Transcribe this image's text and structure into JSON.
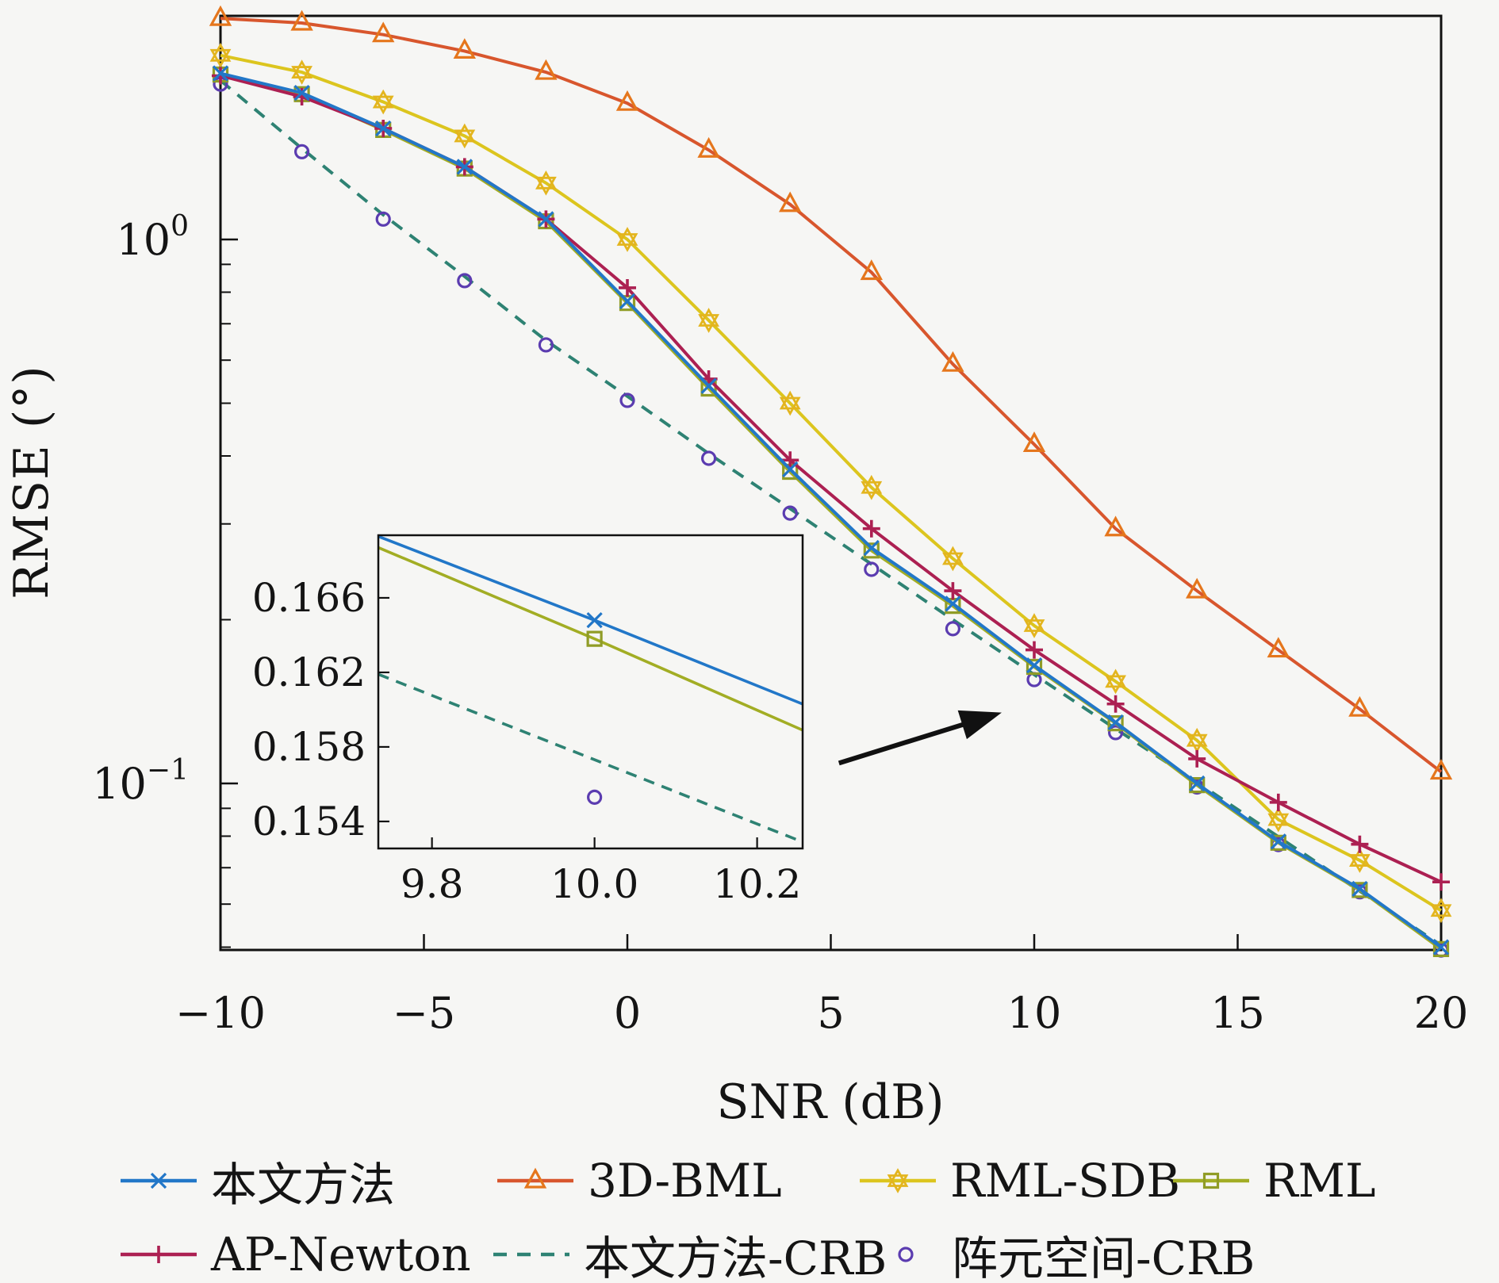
{
  "figure": {
    "background": "#f6f6f4",
    "spine_color": "#111111"
  },
  "chart_data": {
    "type": "line",
    "title": "",
    "xlabel": "SNR (dB)",
    "ylabel": "RMSE (°)",
    "x_scale": "linear",
    "y_scale": "log",
    "xlim": [
      -10,
      20
    ],
    "ylim": [
      0.0494,
      2.576
    ],
    "grid": false,
    "x_axis": {
      "tick_values": [
        -10,
        -5,
        0,
        5,
        10,
        15,
        20
      ],
      "tick_labels": [
        "−10",
        "−5",
        "0",
        "5",
        "10",
        "15",
        "20"
      ]
    },
    "y_axis": {
      "major_ticks": [
        {
          "value": 1,
          "base": "10",
          "exp": "0"
        },
        {
          "value": 0.1,
          "base": "10",
          "exp": "−1"
        }
      ],
      "minor_ticks": [
        0.05,
        0.06,
        0.07,
        0.08,
        0.09,
        0.2,
        0.3,
        0.4,
        0.5,
        0.6,
        0.7,
        0.8,
        0.9,
        2
      ]
    },
    "x": [
      -10,
      -8,
      -6,
      -4,
      -2,
      0,
      2,
      4,
      6,
      8,
      10,
      12,
      14,
      16,
      18,
      20
    ],
    "series": [
      {
        "name": "本文方法",
        "color": "#2277c8",
        "marker": "x",
        "marker_color": "#2277c8",
        "line": true,
        "dash": null,
        "values": [
          2.02,
          1.86,
          1.6,
          1.36,
          1.09,
          0.77,
          0.538,
          0.378,
          0.271,
          0.214,
          0.1648,
          0.1295,
          0.1,
          0.0782,
          0.064,
          0.05
        ]
      },
      {
        "name": "3D-BML",
        "color": "#d8562d",
        "marker": "triangle",
        "marker_color": "#e5761c",
        "line": true,
        "dash": null,
        "values": [
          2.55,
          2.5,
          2.38,
          2.22,
          2.03,
          1.78,
          1.46,
          1.16,
          0.87,
          0.59,
          0.42,
          0.294,
          0.226,
          0.176,
          0.137,
          0.105
        ]
      },
      {
        "name": "RML-SDB",
        "color": "#dcc51e",
        "marker": "hexagram",
        "marker_color": "#e3b51e",
        "line": true,
        "dash": null,
        "values": [
          2.18,
          2.03,
          1.79,
          1.55,
          1.27,
          1.0,
          0.71,
          0.5,
          0.35,
          0.259,
          0.195,
          0.154,
          0.12,
          0.0858,
          0.0722,
          0.0584
        ]
      },
      {
        "name": "RML",
        "color": "#a2ad24",
        "marker": "square",
        "marker_color": "#909c26",
        "line": true,
        "dash": null,
        "values": [
          2.01,
          1.85,
          1.59,
          1.35,
          1.08,
          0.764,
          0.532,
          0.374,
          0.268,
          0.212,
          0.1638,
          0.129,
          0.0993,
          0.0778,
          0.0637,
          0.0496
        ]
      },
      {
        "name": "AP-Newton",
        "color": "#ac2052",
        "marker": "plus",
        "marker_color": "#ac2052",
        "line": true,
        "dash": null,
        "values": [
          2.0,
          1.83,
          1.6,
          1.36,
          1.09,
          0.815,
          0.554,
          0.393,
          0.294,
          0.226,
          0.176,
          0.14,
          0.111,
          0.0923,
          0.0773,
          0.0659
        ]
      },
      {
        "name": "本文方法-CRB",
        "color": "#2e8273",
        "marker": null,
        "marker_color": "#2e8273",
        "line": true,
        "dash": [
          16,
          12
        ],
        "values": [
          1.96,
          1.47,
          1.11,
          0.855,
          0.652,
          0.515,
          0.404,
          0.32,
          0.253,
          0.2,
          0.1585,
          0.126,
          0.1005,
          0.0798,
          0.0634,
          0.0504
        ]
      },
      {
        "name": "阵元空间-CRB",
        "color": "#5b3cb0",
        "marker": "circle",
        "marker_color": "#5b3cb0",
        "line": false,
        "dash": null,
        "values": [
          1.93,
          1.45,
          1.09,
          0.84,
          0.64,
          0.506,
          0.396,
          0.314,
          0.2475,
          0.1925,
          0.1552,
          0.124,
          0.0985,
          0.0772,
          0.0632,
          0.0494
        ]
      }
    ],
    "inset": {
      "xlim": [
        9.734,
        10.256
      ],
      "ylim": [
        0.15255,
        0.16936
      ],
      "x_ticks": [
        {
          "value": 9.8,
          "label": "9.8"
        },
        {
          "value": 10.0,
          "label": "10.0"
        },
        {
          "value": 10.2,
          "label": "10.2"
        }
      ],
      "y_ticks": [
        {
          "value": 0.154,
          "label": "0.154"
        },
        {
          "value": 0.158,
          "label": "0.158"
        },
        {
          "value": 0.162,
          "label": "0.162"
        },
        {
          "value": 0.166,
          "label": "0.166"
        }
      ],
      "series": [
        {
          "ref": "本文方法",
          "points": [
            [
              9.734,
              0.1693
            ],
            [
              10.0,
              0.1648
            ],
            [
              10.256,
              0.1603
            ]
          ],
          "marker_at": [
            10.0,
            0.1648
          ]
        },
        {
          "ref": "RML",
          "points": [
            [
              9.734,
              0.1687
            ],
            [
              10.0,
              0.1638
            ],
            [
              10.256,
              0.1589
            ]
          ],
          "marker_at": [
            10.0,
            0.1638
          ]
        },
        {
          "ref": "本文方法-CRB",
          "points": [
            [
              9.734,
              0.1619
            ],
            [
              10.256,
              0.1529
            ]
          ],
          "marker_at": null
        },
        {
          "ref": "阵元空间-CRB",
          "points": null,
          "marker_at": [
            10.0,
            0.1553
          ]
        }
      ]
    },
    "annotation_arrow": {
      "tail_xy": [
        5.2,
        0.109
      ],
      "tip_xy": [
        9.2,
        0.135
      ]
    }
  },
  "legend": {
    "rows": [
      [
        {
          "label": "本文方法",
          "series": "本文方法"
        },
        {
          "label": "3D-BML",
          "series": "3D-BML"
        },
        {
          "label": "RML-SDB",
          "series": "RML-SDB"
        },
        {
          "label": "RML",
          "series": "RML"
        }
      ],
      [
        {
          "label": "AP-Newton",
          "series": "AP-Newton"
        },
        {
          "label": "本文方法-CRB",
          "series": "本文方法-CRB"
        },
        {
          "label": "阵元空间-CRB",
          "series": "阵元空间-CRB"
        }
      ]
    ]
  }
}
